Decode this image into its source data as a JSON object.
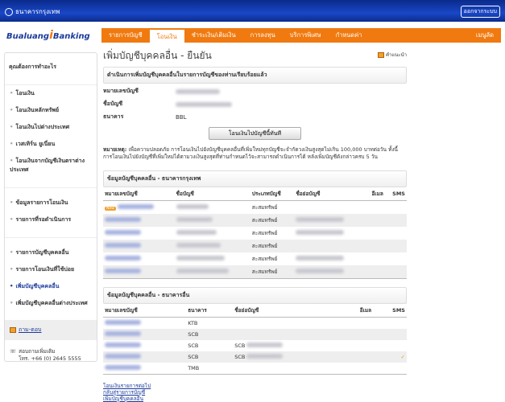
{
  "header": {
    "bank_name": "ธนาคารกรุงเทพ",
    "logout": "ออกจากระบบ",
    "logo": "Bualuang iBanking"
  },
  "nav": [
    "รายการบัญชี",
    "โอนเงิน",
    "ชำระเงิน/เติมเงิน",
    "การลงทุน",
    "บริการพิเศษ",
    "กำหนดค่า",
    "เมนูลัด"
  ],
  "nav_active": "โอนเงิน",
  "sidebar": {
    "heading": "คุณต้องการทำอะไร",
    "group1": [
      "โอนเงิน",
      "โอนเงินหลักทรัพย์",
      "โอนเงินไปต่างประเทศ",
      "เวสเทิร์น ยูเนี่ยน",
      "โอนเงินจากบัญชีเงินตราต่างประเทศ"
    ],
    "group2": [
      "ข้อมูลรายการโอนเงิน",
      "รายการที่รอดำเนินการ"
    ],
    "group3": [
      "รายการบัญชีบุคคลอื่น",
      "รายการโอนเงินที่ใช้บ่อย",
      "เพิ่มบัญชีบุคคลอื่น",
      "เพิ่มบัญชีบุคคลอื่นต่างประเทศ"
    ],
    "active": "เพิ่มบัญชีบุคคลอื่น",
    "qa": "ถาม-ตอบ",
    "contact_label": "สอบถามเพิ่มเติม",
    "contact_phone": "โทร. +66 (0) 2645 5555"
  },
  "main": {
    "title": "เพิ่มบัญชีบุคคลอื่น - ยืนยัน",
    "help": "คำแนะนำ",
    "success": "ดำเนินการเพิ่มบัญชีบุคคลอื่นในรายการบัญชีของท่านเรียบร้อยแล้ว",
    "fields": {
      "account_no_label": "หมายเลขบัญชี",
      "account_name_label": "ชื่อบัญชี",
      "bank_label": "ธนาคาร",
      "bank_value": "BBL"
    },
    "transfer_button": "โอนเงินไปบัญชีนี้ทันที",
    "note_label": "หมายเหตุ:",
    "note": "เพื่อความปลอดภัย การโอนเงินไปยังบัญชีบุคคลอื่นที่เพิ่มใหม่ทุกบัญชีจะจำกัดวงเงินสูงสุดไม่เกิน 100,000 บาทต่อวัน ทั้งนี้ การโอนเงินไปยังบัญชีที่เพิ่มใหม่ได้ตามวงเงินสูงสุดที่ท่านกำหนดไว้จะสามารถดำเนินการได้ หลังเพิ่มบัญชีดังกล่าวครบ 5 วัน",
    "bbl_section": {
      "title": "ข้อมูลบัญชีบุคคลอื่น - ธนาคารกรุงเทพ",
      "columns": [
        "หมายเลขบัญชี",
        "ชื่อบัญชี",
        "ประเภทบัญชี",
        "ชื่อย่อบัญชี",
        "อีเมล",
        "SMS"
      ],
      "new_badge": "New",
      "rows": [
        {
          "type": "สะสมทรัพย์",
          "new": true,
          "nick": false
        },
        {
          "type": "สะสมทรัพย์",
          "nick": true
        },
        {
          "type": "สะสมทรัพย์",
          "nick": true
        },
        {
          "type": "สะสมทรัพย์",
          "nick": false
        },
        {
          "type": "สะสมทรัพย์",
          "nick": true
        },
        {
          "type": "สะสมทรัพย์",
          "nick": true
        }
      ]
    },
    "other_section": {
      "title": "ข้อมูลบัญชีบุคคลอื่น - ธนาคารอื่น",
      "columns": [
        "หมายเลขบัญชี",
        "ธนาคาร",
        "ชื่อย่อบัญชี",
        "อีเมล",
        "SMS"
      ],
      "rows": [
        {
          "bank": "KTB",
          "nick": ""
        },
        {
          "bank": "SCB",
          "nick": ""
        },
        {
          "bank": "SCB",
          "nick": "SCB"
        },
        {
          "bank": "SCB",
          "nick": "SCB",
          "sms": "✓"
        },
        {
          "bank": "TMB",
          "nick": ""
        }
      ]
    },
    "links": [
      "โอนเงินรายการต่อไป",
      "กลับสู่รายการบัญชี",
      "เพิ่มบัญชีบุคคลอื่น"
    ]
  },
  "colors": {
    "header_blue": "#1a47c8",
    "nav_orange": "#f07a10",
    "link": "#1a3a9a"
  }
}
